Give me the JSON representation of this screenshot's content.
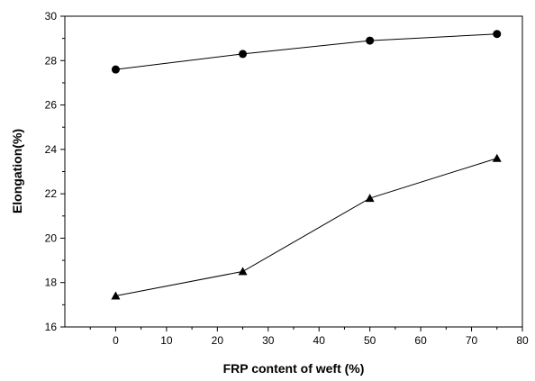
{
  "chart_data": {
    "type": "line",
    "title": "",
    "xlabel": "FRP content of  weft (%)",
    "ylabel": "Elongation(%)",
    "xlim": [
      -10,
      80
    ],
    "ylim": [
      16,
      30
    ],
    "xticks": [
      0,
      10,
      20,
      30,
      40,
      50,
      60,
      70,
      80
    ],
    "yticks": [
      16,
      18,
      20,
      22,
      24,
      26,
      28,
      30
    ],
    "grid": false,
    "legend": "none",
    "x": [
      0,
      25,
      50,
      75
    ],
    "series": [
      {
        "marker": "circle",
        "color": "#000000",
        "values": [
          27.6,
          28.3,
          28.9,
          29.2
        ]
      },
      {
        "marker": "triangle",
        "color": "#000000",
        "values": [
          17.4,
          18.5,
          21.8,
          23.6
        ]
      }
    ]
  }
}
